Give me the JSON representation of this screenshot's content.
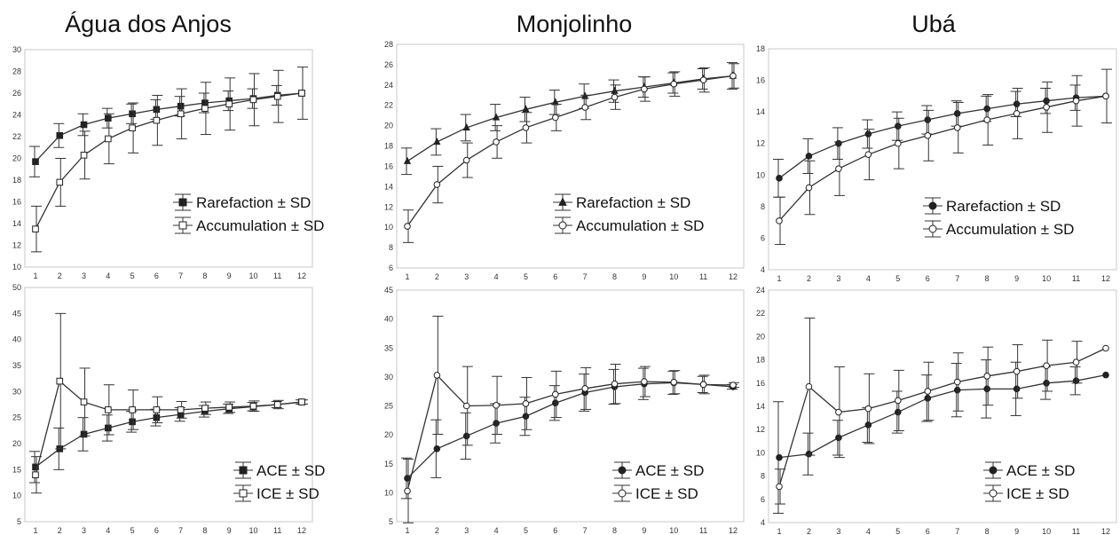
{
  "column_titles": [
    "Água dos Anjos",
    "Monjolinho",
    "Ubá"
  ],
  "chart_data": [
    {
      "type": "line",
      "column": "Água dos Anjos",
      "row": "top",
      "x": [
        1,
        2,
        3,
        4,
        5,
        6,
        7,
        8,
        9,
        10,
        11,
        12
      ],
      "xticks": [
        "1",
        "2",
        "3",
        "4",
        "5",
        "6",
        "7",
        "8",
        "9",
        "10",
        "11",
        "12"
      ],
      "ylim": [
        10,
        30
      ],
      "yticks": [
        "10",
        "12",
        "14",
        "16",
        "18",
        "20",
        "22",
        "24",
        "26",
        "28",
        "30"
      ],
      "series": [
        {
          "name": "Rarefaction ± SD",
          "marker": "filled-square",
          "values": [
            19.7,
            22.1,
            23.1,
            23.7,
            24.1,
            24.5,
            24.8,
            25.1,
            25.3,
            25.5,
            25.8,
            26.0
          ],
          "sd": [
            1.4,
            1.1,
            1.0,
            0.9,
            0.9,
            0.9,
            0.9,
            0.9,
            0.9,
            0.9,
            0.9,
            0.0
          ]
        },
        {
          "name": "Accumulation ± SD",
          "marker": "open-square",
          "values": [
            13.5,
            17.8,
            20.3,
            21.8,
            22.8,
            23.5,
            24.1,
            24.6,
            25.0,
            25.4,
            25.7,
            26.0
          ],
          "sd": [
            2.1,
            2.2,
            2.2,
            2.3,
            2.3,
            2.3,
            2.3,
            2.4,
            2.4,
            2.4,
            2.4,
            2.4
          ]
        }
      ]
    },
    {
      "type": "line",
      "column": "Monjolinho",
      "row": "top",
      "x": [
        1,
        2,
        3,
        4,
        5,
        6,
        7,
        8,
        9,
        10,
        11,
        12
      ],
      "xticks": [
        "1",
        "2",
        "3",
        "4",
        "5",
        "6",
        "7",
        "8",
        "9",
        "10",
        "11",
        "12"
      ],
      "ylim": [
        6,
        28
      ],
      "yticks": [
        "6",
        "8",
        "10",
        "12",
        "14",
        "16",
        "18",
        "20",
        "22",
        "24",
        "26",
        "28"
      ],
      "series": [
        {
          "name": "Rarefaction ± SD",
          "marker": "filled-triangle",
          "values": [
            16.5,
            18.4,
            19.8,
            20.8,
            21.6,
            22.3,
            22.9,
            23.4,
            23.8,
            24.2,
            24.6,
            24.9
          ],
          "sd": [
            1.3,
            1.3,
            1.3,
            1.3,
            1.2,
            1.2,
            1.2,
            1.1,
            1.0,
            1.0,
            1.0,
            1.3
          ]
        },
        {
          "name": "Accumulation ± SD",
          "marker": "open-circle",
          "values": [
            10.1,
            14.2,
            16.6,
            18.4,
            19.8,
            20.8,
            21.8,
            22.8,
            23.6,
            24.1,
            24.5,
            24.9
          ],
          "sd": [
            1.6,
            1.8,
            1.7,
            1.6,
            1.5,
            1.3,
            1.2,
            1.2,
            1.2,
            1.2,
            1.2,
            1.2
          ]
        }
      ]
    },
    {
      "type": "line",
      "column": "Ubá",
      "row": "top",
      "x": [
        1,
        2,
        3,
        4,
        5,
        6,
        7,
        8,
        9,
        10,
        11,
        12
      ],
      "xticks": [
        "1",
        "2",
        "3",
        "4",
        "5",
        "6",
        "7",
        "8",
        "9",
        "10",
        "11",
        "12"
      ],
      "ylim": [
        4,
        18
      ],
      "yticks": [
        "4",
        "6",
        "8",
        "10",
        "12",
        "14",
        "16",
        "18"
      ],
      "series": [
        {
          "name": "Rarefaction ± SD",
          "marker": "filled-circle",
          "values": [
            9.8,
            11.2,
            12.0,
            12.6,
            13.1,
            13.5,
            13.9,
            14.2,
            14.5,
            14.7,
            14.9,
            15.0
          ],
          "sd": [
            1.2,
            1.1,
            1.0,
            0.9,
            0.9,
            0.9,
            0.8,
            0.8,
            0.8,
            0.8,
            0.8,
            0.0
          ]
        },
        {
          "name": "Accumulation ± SD",
          "marker": "open-circle",
          "values": [
            7.1,
            9.2,
            10.4,
            11.3,
            12.0,
            12.5,
            13.0,
            13.5,
            13.9,
            14.3,
            14.7,
            15.0
          ],
          "sd": [
            1.5,
            1.7,
            1.7,
            1.6,
            1.6,
            1.6,
            1.6,
            1.6,
            1.6,
            1.6,
            1.6,
            1.7
          ]
        }
      ]
    },
    {
      "type": "line",
      "column": "Água dos Anjos",
      "row": "bottom",
      "x": [
        1,
        2,
        3,
        4,
        5,
        6,
        7,
        8,
        9,
        10,
        11,
        12
      ],
      "xticks": [
        "1",
        "2",
        "3",
        "4",
        "5",
        "6",
        "7",
        "8",
        "9",
        "10",
        "11",
        "12"
      ],
      "ylim": [
        5,
        50
      ],
      "yticks": [
        "5",
        "10",
        "15",
        "20",
        "25",
        "30",
        "35",
        "40",
        "45",
        "50"
      ],
      "series": [
        {
          "name": "ACE ± SD",
          "marker": "filled-square",
          "values": [
            15.5,
            19.0,
            21.8,
            23.0,
            24.2,
            25.0,
            25.6,
            26.2,
            26.7,
            27.1,
            27.5,
            28.0
          ],
          "sd": [
            3.0,
            4.0,
            3.2,
            2.5,
            2.0,
            1.6,
            1.3,
            1.1,
            0.9,
            0.8,
            0.6,
            0.4
          ]
        },
        {
          "name": "ICE ± SD",
          "marker": "open-square",
          "values": [
            14.0,
            32.0,
            28.0,
            26.5,
            26.5,
            26.5,
            26.5,
            26.8,
            27.0,
            27.2,
            27.5,
            28.0
          ],
          "sd": [
            3.5,
            13.0,
            6.5,
            4.8,
            3.8,
            2.5,
            1.6,
            1.2,
            1.0,
            1.0,
            0.8,
            0.4
          ]
        }
      ]
    },
    {
      "type": "line",
      "column": "Monjolinho",
      "row": "bottom",
      "x": [
        1,
        2,
        3,
        4,
        5,
        6,
        7,
        8,
        9,
        10,
        11,
        12
      ],
      "xticks": [
        "1",
        "2",
        "3",
        "4",
        "5",
        "6",
        "7",
        "8",
        "9",
        "10",
        "11",
        "12"
      ],
      "ylim": [
        5,
        45
      ],
      "yticks": [
        "5",
        "10",
        "15",
        "20",
        "25",
        "30",
        "35",
        "40",
        "45"
      ],
      "series": [
        {
          "name": "ACE ± SD",
          "marker": "filled-circle",
          "values": [
            12.5,
            17.6,
            19.8,
            22.0,
            23.2,
            25.5,
            27.3,
            28.3,
            28.8,
            29.0,
            28.7,
            28.3
          ],
          "sd": [
            3.5,
            5.0,
            4.0,
            3.4,
            3.3,
            3.0,
            3.2,
            3.0,
            2.7,
            2.0,
            1.4,
            0.4
          ]
        },
        {
          "name": "ICE ± SD",
          "marker": "open-circle",
          "values": [
            10.3,
            30.3,
            25.0,
            25.1,
            25.4,
            27.0,
            28.0,
            28.8,
            29.2,
            29.1,
            28.7,
            28.6
          ],
          "sd": [
            5.5,
            10.2,
            6.8,
            5.0,
            4.5,
            4.0,
            3.6,
            3.4,
            2.6,
            2.0,
            1.6,
            0.4
          ]
        }
      ]
    },
    {
      "type": "line",
      "column": "Ubá",
      "row": "bottom",
      "x": [
        1,
        2,
        3,
        4,
        5,
        6,
        7,
        8,
        9,
        10,
        11,
        12
      ],
      "xticks": [
        "1",
        "2",
        "3",
        "4",
        "5",
        "6",
        "7",
        "8",
        "9",
        "10",
        "11",
        "12"
      ],
      "ylim": [
        4,
        24
      ],
      "yticks": [
        "4",
        "6",
        "8",
        "10",
        "12",
        "14",
        "16",
        "18",
        "20",
        "22",
        "24"
      ],
      "series": [
        {
          "name": "ACE ± SD",
          "marker": "filled-circle",
          "values": [
            9.6,
            9.9,
            11.3,
            12.4,
            13.5,
            14.7,
            15.4,
            15.5,
            15.5,
            16.0,
            16.2,
            16.7
          ],
          "sd": [
            4.8,
            1.8,
            1.5,
            1.5,
            1.8,
            2.0,
            2.3,
            2.5,
            2.3,
            1.4,
            1.2,
            0.0
          ]
        },
        {
          "name": "ICE ± SD",
          "marker": "open-circle",
          "values": [
            7.1,
            15.7,
            13.5,
            13.8,
            14.5,
            15.3,
            16.1,
            16.6,
            17.0,
            17.5,
            17.8,
            19.0
          ],
          "sd": [
            1.5,
            5.9,
            3.9,
            3.0,
            2.6,
            2.5,
            2.5,
            2.5,
            2.3,
            2.2,
            1.8,
            0.0
          ]
        }
      ]
    }
  ]
}
